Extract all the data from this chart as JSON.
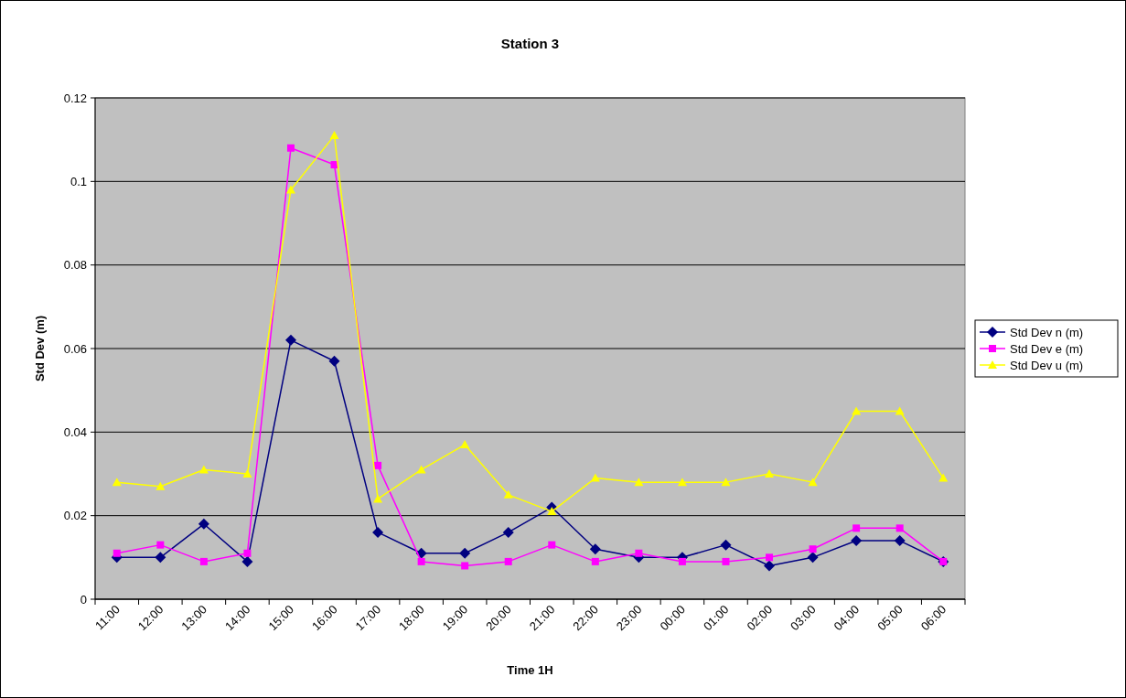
{
  "chart_data": {
    "type": "line",
    "title": "Station 3",
    "xlabel": "Time 1H",
    "ylabel": "Std Dev (m)",
    "categories": [
      "11:00",
      "12:00",
      "13:00",
      "14:00",
      "15:00",
      "16:00",
      "17:00",
      "18:00",
      "19:00",
      "20:00",
      "21:00",
      "22:00",
      "23:00",
      "00:00",
      "01:00",
      "02:00",
      "03:00",
      "04:00",
      "05:00",
      "06:00"
    ],
    "series": [
      {
        "name": "Std Dev n (m)",
        "color": "#000080",
        "marker": "diamond",
        "values": [
          0.01,
          0.01,
          0.018,
          0.009,
          0.062,
          0.057,
          0.016,
          0.011,
          0.011,
          0.016,
          0.022,
          0.012,
          0.01,
          0.01,
          0.013,
          0.008,
          0.01,
          0.014,
          0.014,
          0.009
        ]
      },
      {
        "name": "Std Dev e (m)",
        "color": "#ff00ff",
        "marker": "square",
        "values": [
          0.011,
          0.013,
          0.009,
          0.011,
          0.108,
          0.104,
          0.032,
          0.009,
          0.008,
          0.009,
          0.013,
          0.009,
          0.011,
          0.009,
          0.009,
          0.01,
          0.012,
          0.017,
          0.017,
          0.009
        ]
      },
      {
        "name": "Std Dev u (m)",
        "color": "#ffff00",
        "marker": "triangle",
        "values": [
          0.028,
          0.027,
          0.031,
          0.03,
          0.098,
          0.111,
          0.024,
          0.031,
          0.037,
          0.025,
          0.021,
          0.029,
          0.028,
          0.028,
          0.028,
          0.03,
          0.028,
          0.045,
          0.045,
          0.029
        ]
      }
    ],
    "ylim": [
      0,
      0.12
    ],
    "yticks": [
      0,
      0.02,
      0.04,
      0.06,
      0.08,
      0.1,
      0.12
    ],
    "grid": "y",
    "legend": "right"
  }
}
